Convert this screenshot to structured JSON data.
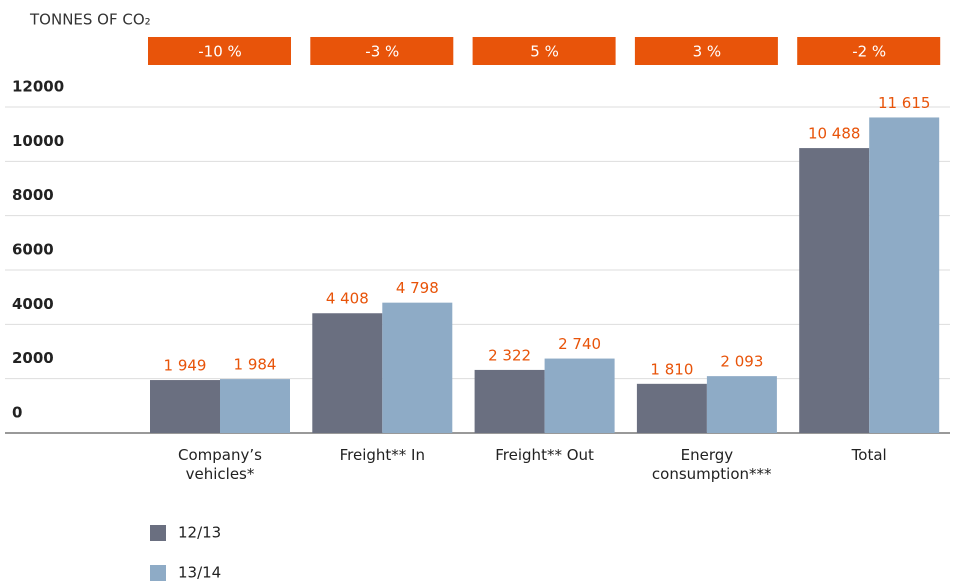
{
  "chart_data": {
    "type": "bar",
    "title": "TONNES OF CO₂",
    "categories": [
      "Company’s vehicles*",
      "Freight** In",
      "Freight** Out",
      "Energy consumption***",
      "Total"
    ],
    "changes": [
      "-10 %",
      "-3 %",
      "5 %",
      "3 %",
      "-2 %"
    ],
    "series": [
      {
        "name": "12/13",
        "color": "#6a6f80",
        "values": [
          1949,
          4408,
          2322,
          1810,
          10488
        ],
        "value_labels": [
          "1 949",
          "4 408",
          "2 322",
          "1 810",
          "10 488"
        ]
      },
      {
        "name": "13/14",
        "color": "#8eabc6",
        "values": [
          1984,
          4798,
          2740,
          2093,
          11615
        ],
        "value_labels": [
          "1 984",
          "4 798",
          "2 740",
          "2 093",
          "11 615"
        ]
      }
    ],
    "ylim": [
      0,
      12000
    ],
    "yticks": [
      0,
      2000,
      4000,
      6000,
      8000,
      10000,
      12000
    ],
    "grid": true,
    "change_color": "#e8540a",
    "label_color": "#e8540a"
  }
}
